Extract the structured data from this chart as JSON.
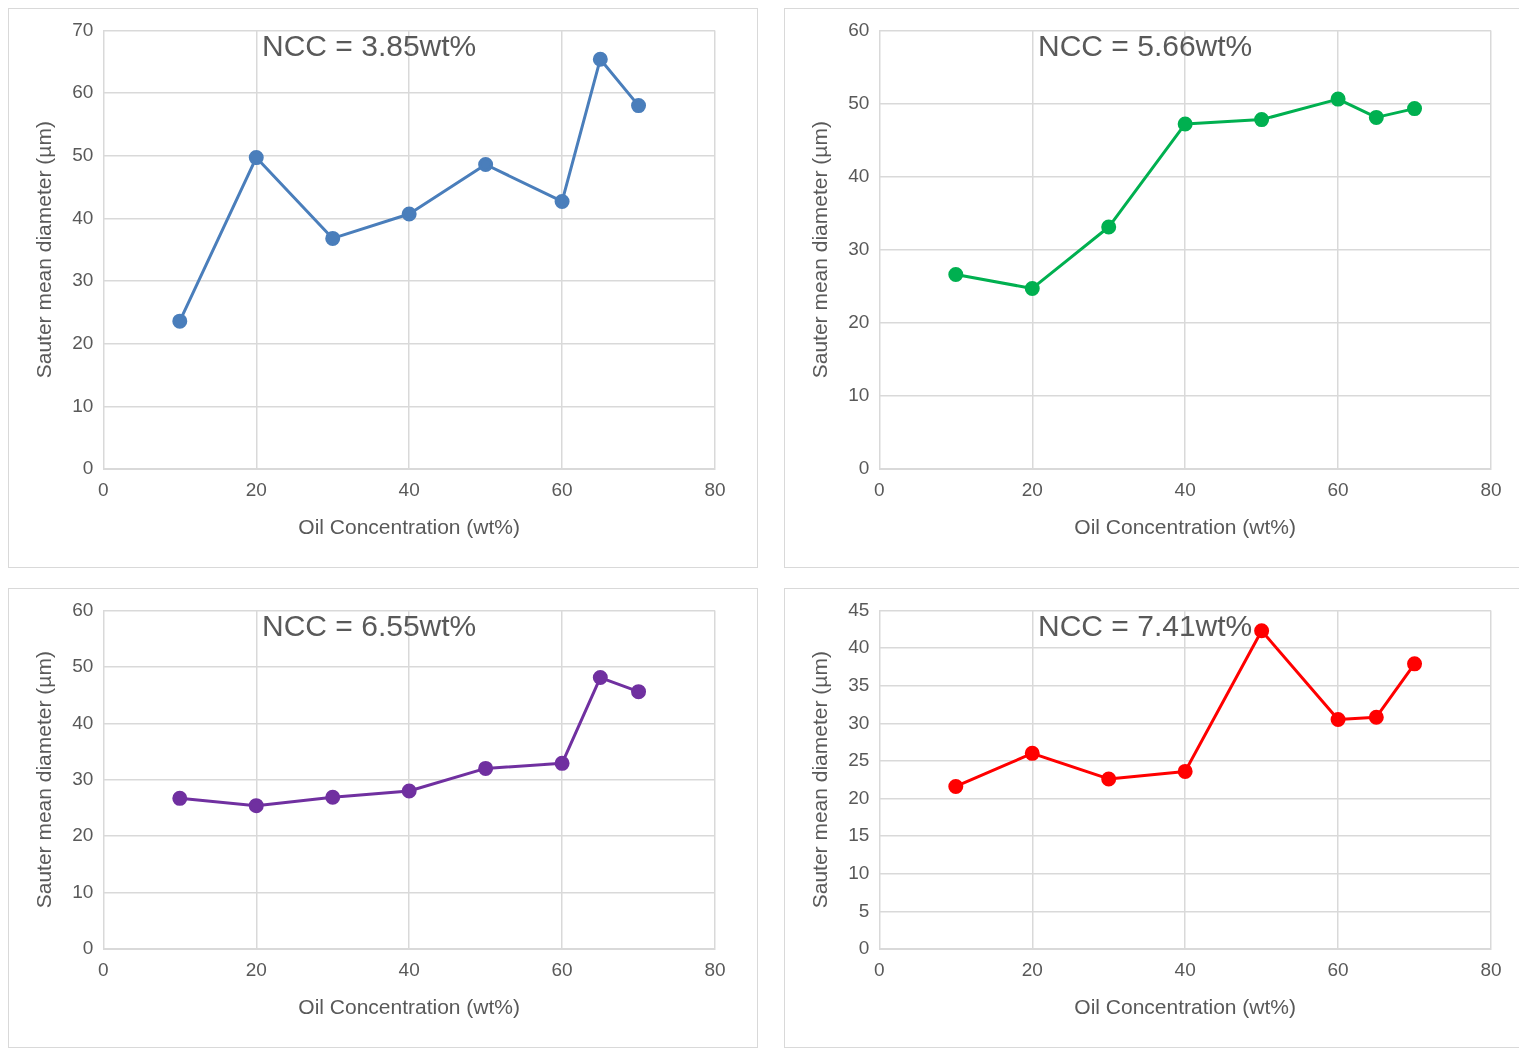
{
  "chart_data": [
    {
      "type": "line",
      "title": "NCC = 3.85wt%",
      "xlabel": "Oil Concentration (wt%)",
      "ylabel": "Sauter mean diameter (µm)",
      "x": [
        10,
        20,
        30,
        40,
        50,
        60,
        65,
        70
      ],
      "series": [
        {
          "color": "#4a7ebb",
          "values": [
            23.6,
            49.7,
            36.8,
            40.7,
            48.6,
            42.7,
            65.4,
            58.0
          ]
        }
      ],
      "xlim": [
        0,
        80
      ],
      "xticks": [
        0,
        20,
        40,
        60,
        80
      ],
      "ylim": [
        0,
        70
      ],
      "yticks": [
        0,
        10,
        20,
        30,
        40,
        50,
        60,
        70
      ],
      "grid": true,
      "marker": "circle",
      "legend": false
    },
    {
      "type": "line",
      "title": "NCC = 5.66wt%",
      "xlabel": "Oil Concentration (wt%)",
      "ylabel": "Sauter mean diameter (µm)",
      "x": [
        10,
        20,
        30,
        40,
        50,
        60,
        65,
        70
      ],
      "series": [
        {
          "color": "#00b050",
          "values": [
            26.6,
            24.7,
            33.1,
            47.2,
            47.8,
            50.6,
            48.1,
            49.3
          ]
        }
      ],
      "xlim": [
        0,
        80
      ],
      "xticks": [
        0,
        20,
        40,
        60,
        80
      ],
      "ylim": [
        0,
        60
      ],
      "yticks": [
        0,
        10,
        20,
        30,
        40,
        50,
        60
      ],
      "grid": true,
      "marker": "circle",
      "legend": false
    },
    {
      "type": "line",
      "title": "NCC = 6.55wt%",
      "xlabel": "Oil Concentration (wt%)",
      "ylabel": "Sauter mean diameter (µm)",
      "x": [
        10,
        20,
        30,
        40,
        50,
        60,
        65,
        70
      ],
      "series": [
        {
          "color": "#7030a0",
          "values": [
            26.7,
            25.4,
            26.9,
            28.0,
            32.0,
            32.9,
            48.1,
            45.6
          ]
        }
      ],
      "xlim": [
        0,
        80
      ],
      "xticks": [
        0,
        20,
        40,
        60,
        80
      ],
      "ylim": [
        0,
        60
      ],
      "yticks": [
        0,
        10,
        20,
        30,
        40,
        50,
        60
      ],
      "grid": true,
      "marker": "circle",
      "legend": false
    },
    {
      "type": "line",
      "title": "NCC = 7.41wt%",
      "xlabel": "Oil Concentration (wt%)",
      "ylabel": "Sauter mean diameter (µm)",
      "x": [
        10,
        20,
        30,
        40,
        50,
        60,
        65,
        70
      ],
      "series": [
        {
          "color": "#ff0000",
          "values": [
            21.6,
            26.0,
            22.6,
            23.6,
            42.3,
            30.5,
            30.8,
            37.9
          ]
        }
      ],
      "xlim": [
        0,
        80
      ],
      "xticks": [
        0,
        20,
        40,
        60,
        80
      ],
      "ylim": [
        0,
        45
      ],
      "yticks": [
        0,
        5,
        10,
        15,
        20,
        25,
        30,
        35,
        40,
        45
      ],
      "grid": true,
      "marker": "circle",
      "legend": false
    }
  ]
}
